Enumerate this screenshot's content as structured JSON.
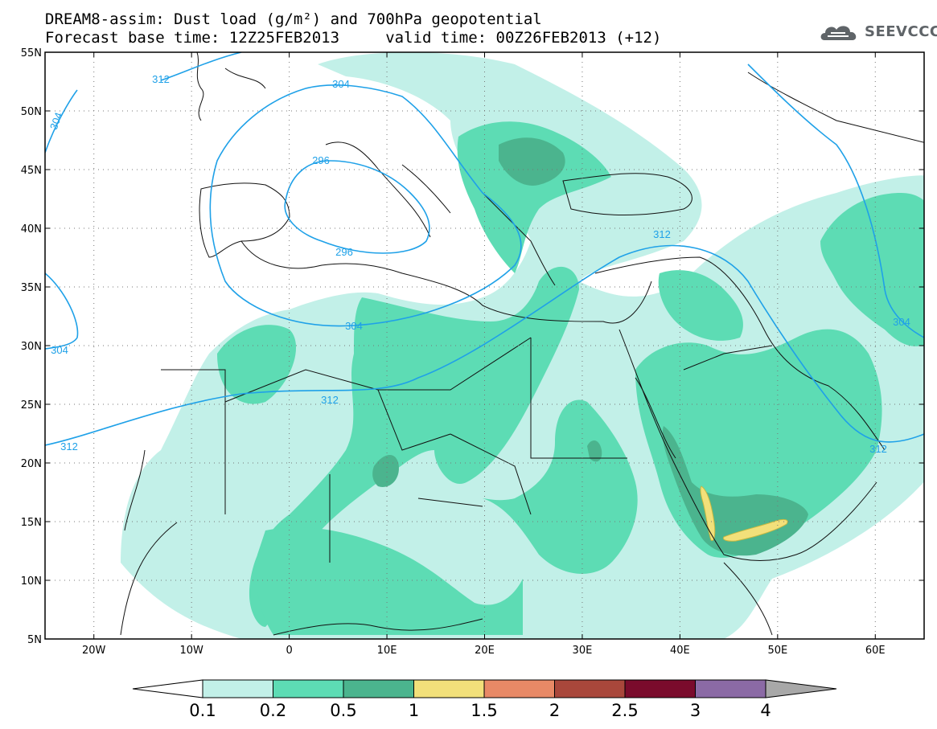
{
  "header": {
    "title_line1": "DREAM8-assim: Dust load (g/m²) and 700hPa geopotential",
    "title_line2": "Forecast base time: 12Z25FEB2013     valid time: 00Z26FEB2013 (+12)"
  },
  "logo": {
    "text": "SEEVCCC"
  },
  "map": {
    "lon_range": [
      -25,
      65
    ],
    "lat_range": [
      5,
      55
    ],
    "lon_ticks": [
      "20W",
      "10W",
      "0",
      "10E",
      "20E",
      "30E",
      "40E",
      "50E",
      "60E"
    ],
    "lat_ticks": [
      "55N",
      "50N",
      "45N",
      "40N",
      "35N",
      "30N",
      "25N",
      "20N",
      "15N",
      "10N",
      "5N"
    ],
    "grid": "dotted",
    "contour_labels": [
      "312",
      "304",
      "304",
      "296",
      "296",
      "312",
      "304",
      "312",
      "304",
      "312",
      "304",
      "312",
      "304"
    ]
  },
  "legend": {
    "bins": [
      "0.1",
      "0.2",
      "0.5",
      "1",
      "1.5",
      "2",
      "2.5",
      "3",
      "4"
    ],
    "colors": [
      "#ffffff",
      "#c2f0e8",
      "#5ddcb4",
      "#4bb48e",
      "#f2e07a",
      "#e88966",
      "#a9473b",
      "#7a0b2c",
      "#8b6aa5",
      "#a8a8a8"
    ]
  },
  "colors": {
    "level1": "#c2f0e8",
    "level2": "#5ddcb4",
    "level3": "#4bb48e",
    "level4": "#f2e07a",
    "contour": "#1fa1e8",
    "coast": "#111111"
  }
}
